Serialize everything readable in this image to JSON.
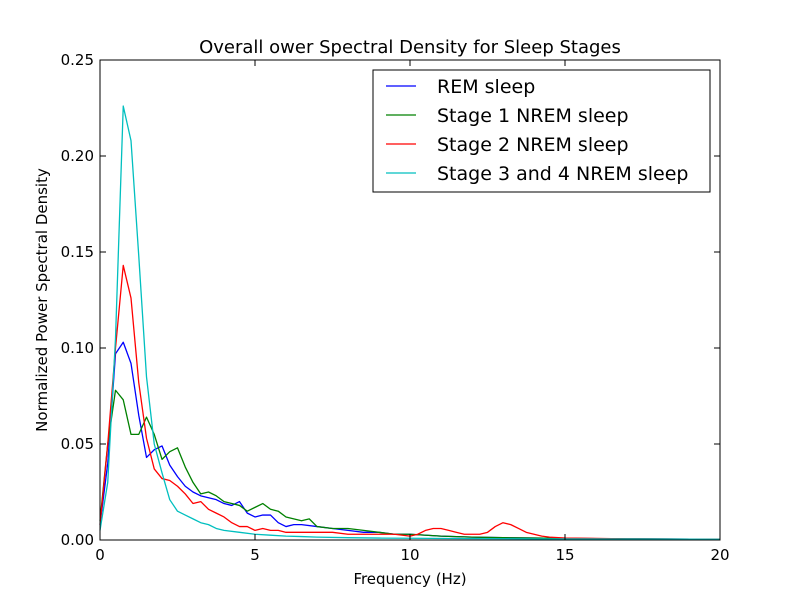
{
  "chart_data": {
    "type": "line",
    "title": "Overall ower Spectral Density for Sleep Stages",
    "xlabel": "Frequency (Hz)",
    "ylabel": "Normalized Power Spectral Density",
    "xlim": [
      0,
      20
    ],
    "ylim": [
      0,
      0.25
    ],
    "xticks": [
      0,
      5,
      10,
      15,
      20
    ],
    "xtick_labels": [
      "0",
      "5",
      "10",
      "15",
      "20"
    ],
    "yticks": [
      0.0,
      0.05,
      0.1,
      0.15,
      0.2,
      0.25
    ],
    "ytick_labels": [
      "0.00",
      "0.05",
      "0.10",
      "0.15",
      "0.20",
      "0.25"
    ],
    "grid": false,
    "legend_position": "top-right",
    "series": [
      {
        "name": "REM sleep",
        "color": "#0000ff",
        "points": [
          [
            0,
            0.008
          ],
          [
            0.25,
            0.04
          ],
          [
            0.5,
            0.097
          ],
          [
            0.75,
            0.103
          ],
          [
            1.0,
            0.092
          ],
          [
            1.25,
            0.065
          ],
          [
            1.5,
            0.043
          ],
          [
            1.75,
            0.047
          ],
          [
            2.0,
            0.049
          ],
          [
            2.25,
            0.039
          ],
          [
            2.5,
            0.033
          ],
          [
            2.75,
            0.028
          ],
          [
            3.0,
            0.025
          ],
          [
            3.25,
            0.023
          ],
          [
            3.5,
            0.022
          ],
          [
            3.75,
            0.021
          ],
          [
            4.0,
            0.019
          ],
          [
            4.25,
            0.018
          ],
          [
            4.5,
            0.02
          ],
          [
            4.75,
            0.014
          ],
          [
            5.0,
            0.012
          ],
          [
            5.25,
            0.013
          ],
          [
            5.5,
            0.013
          ],
          [
            5.75,
            0.009
          ],
          [
            6.0,
            0.007
          ],
          [
            6.25,
            0.008
          ],
          [
            6.5,
            0.008
          ],
          [
            7.0,
            0.007
          ],
          [
            7.5,
            0.006
          ],
          [
            8.0,
            0.005
          ],
          [
            8.5,
            0.004
          ],
          [
            9.0,
            0.004
          ],
          [
            9.5,
            0.003
          ],
          [
            10.0,
            0.003
          ],
          [
            11.0,
            0.002
          ],
          [
            12.0,
            0.0015
          ],
          [
            13.0,
            0.0012
          ],
          [
            14.0,
            0.001
          ],
          [
            15.0,
            0.0008
          ],
          [
            17.0,
            0.0006
          ],
          [
            20.0,
            0.0004
          ]
        ]
      },
      {
        "name": "Stage 1 NREM sleep",
        "color": "#008000",
        "points": [
          [
            0,
            0.01
          ],
          [
            0.25,
            0.05
          ],
          [
            0.5,
            0.078
          ],
          [
            0.75,
            0.073
          ],
          [
            1.0,
            0.055
          ],
          [
            1.25,
            0.055
          ],
          [
            1.5,
            0.064
          ],
          [
            1.75,
            0.055
          ],
          [
            2.0,
            0.042
          ],
          [
            2.25,
            0.046
          ],
          [
            2.5,
            0.048
          ],
          [
            2.75,
            0.038
          ],
          [
            3.0,
            0.03
          ],
          [
            3.25,
            0.024
          ],
          [
            3.5,
            0.025
          ],
          [
            3.75,
            0.023
          ],
          [
            4.0,
            0.02
          ],
          [
            4.25,
            0.019
          ],
          [
            4.5,
            0.018
          ],
          [
            4.75,
            0.015
          ],
          [
            5.0,
            0.017
          ],
          [
            5.25,
            0.019
          ],
          [
            5.5,
            0.016
          ],
          [
            5.75,
            0.015
          ],
          [
            6.0,
            0.012
          ],
          [
            6.25,
            0.011
          ],
          [
            6.5,
            0.01
          ],
          [
            6.75,
            0.011
          ],
          [
            7.0,
            0.007
          ],
          [
            7.5,
            0.006
          ],
          [
            8.0,
            0.006
          ],
          [
            8.5,
            0.005
          ],
          [
            9.0,
            0.004
          ],
          [
            9.5,
            0.003
          ],
          [
            10.0,
            0.003
          ],
          [
            11.0,
            0.002
          ],
          [
            12.0,
            0.0015
          ],
          [
            13.0,
            0.0012
          ],
          [
            14.0,
            0.001
          ],
          [
            15.0,
            0.0008
          ],
          [
            17.0,
            0.0006
          ],
          [
            20.0,
            0.0004
          ]
        ]
      },
      {
        "name": "Stage 2 NREM sleep",
        "color": "#ff0000",
        "points": [
          [
            0,
            0.008
          ],
          [
            0.25,
            0.05
          ],
          [
            0.5,
            0.1
          ],
          [
            0.75,
            0.143
          ],
          [
            1.0,
            0.126
          ],
          [
            1.25,
            0.082
          ],
          [
            1.5,
            0.053
          ],
          [
            1.75,
            0.037
          ],
          [
            2.0,
            0.032
          ],
          [
            2.25,
            0.031
          ],
          [
            2.5,
            0.028
          ],
          [
            2.75,
            0.024
          ],
          [
            3.0,
            0.019
          ],
          [
            3.25,
            0.02
          ],
          [
            3.5,
            0.016
          ],
          [
            3.75,
            0.014
          ],
          [
            4.0,
            0.012
          ],
          [
            4.25,
            0.009
          ],
          [
            4.5,
            0.007
          ],
          [
            4.75,
            0.007
          ],
          [
            5.0,
            0.005
          ],
          [
            5.25,
            0.006
          ],
          [
            5.5,
            0.005
          ],
          [
            5.75,
            0.005
          ],
          [
            6.0,
            0.004
          ],
          [
            6.5,
            0.004
          ],
          [
            7.0,
            0.004
          ],
          [
            7.5,
            0.004
          ],
          [
            8.0,
            0.003
          ],
          [
            8.5,
            0.003
          ],
          [
            9.0,
            0.003
          ],
          [
            9.5,
            0.003
          ],
          [
            10.0,
            0.002
          ],
          [
            10.25,
            0.003
          ],
          [
            10.5,
            0.005
          ],
          [
            10.75,
            0.006
          ],
          [
            11.0,
            0.006
          ],
          [
            11.25,
            0.005
          ],
          [
            11.5,
            0.004
          ],
          [
            11.75,
            0.003
          ],
          [
            12.0,
            0.003
          ],
          [
            12.25,
            0.003
          ],
          [
            12.5,
            0.004
          ],
          [
            12.75,
            0.007
          ],
          [
            13.0,
            0.009
          ],
          [
            13.25,
            0.008
          ],
          [
            13.5,
            0.006
          ],
          [
            13.75,
            0.004
          ],
          [
            14.0,
            0.003
          ],
          [
            14.25,
            0.002
          ],
          [
            14.5,
            0.0015
          ],
          [
            15.0,
            0.001
          ],
          [
            16.0,
            0.0008
          ],
          [
            17.0,
            0.0006
          ],
          [
            20.0,
            0.0004
          ]
        ]
      },
      {
        "name": "Stage 3 and 4 NREM sleep",
        "color": "#00bfbf",
        "points": [
          [
            0,
            0.005
          ],
          [
            0.25,
            0.03
          ],
          [
            0.5,
            0.105
          ],
          [
            0.75,
            0.226
          ],
          [
            1.0,
            0.208
          ],
          [
            1.25,
            0.148
          ],
          [
            1.5,
            0.085
          ],
          [
            1.75,
            0.05
          ],
          [
            2.0,
            0.035
          ],
          [
            2.25,
            0.021
          ],
          [
            2.5,
            0.015
          ],
          [
            2.75,
            0.013
          ],
          [
            3.0,
            0.011
          ],
          [
            3.25,
            0.009
          ],
          [
            3.5,
            0.008
          ],
          [
            3.75,
            0.006
          ],
          [
            4.0,
            0.005
          ],
          [
            4.5,
            0.004
          ],
          [
            5.0,
            0.003
          ],
          [
            5.5,
            0.0025
          ],
          [
            6.0,
            0.002
          ],
          [
            6.5,
            0.0018
          ],
          [
            7.0,
            0.0015
          ],
          [
            8.0,
            0.0012
          ],
          [
            9.0,
            0.001
          ],
          [
            10.0,
            0.0009
          ],
          [
            12.0,
            0.0007
          ],
          [
            14.0,
            0.0006
          ],
          [
            17.0,
            0.0005
          ],
          [
            20.0,
            0.0004
          ]
        ]
      }
    ]
  }
}
